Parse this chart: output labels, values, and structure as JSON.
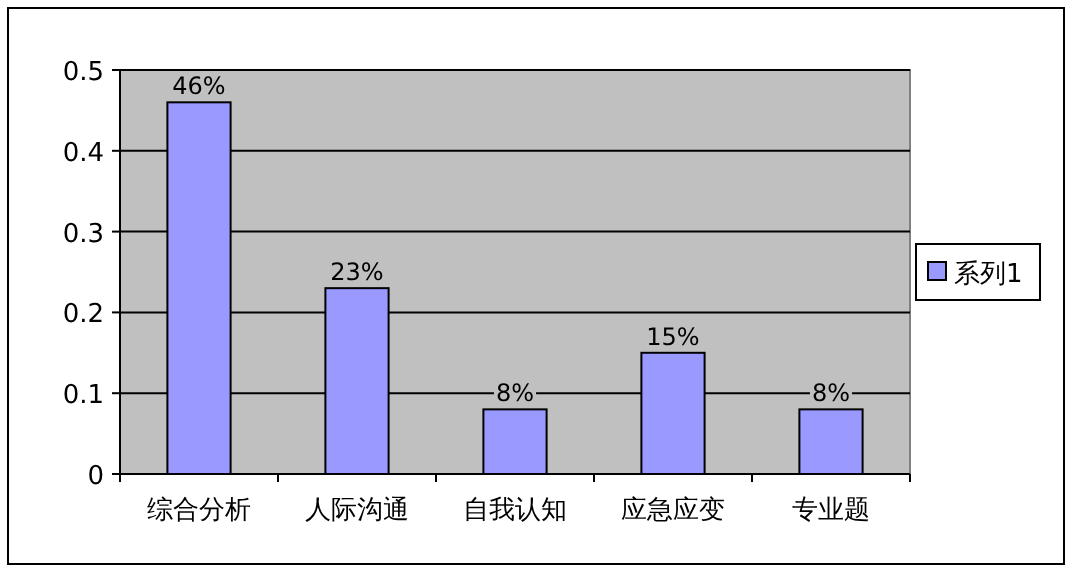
{
  "chart_data": {
    "type": "bar",
    "categories": [
      "综合分析",
      "人际沟通",
      "自我认知",
      "应急应变",
      "专业题"
    ],
    "series": [
      {
        "name": "系列1",
        "color": "#9999ff",
        "values": [
          0.46,
          0.23,
          0.08,
          0.15,
          0.08
        ],
        "value_labels": [
          "46%",
          "23%",
          "8%",
          "15%",
          "8%"
        ]
      }
    ],
    "ylim": [
      0,
      0.5
    ],
    "yticks": [
      0,
      0.1,
      0.2,
      0.3,
      0.4,
      0.5
    ],
    "grid": "y",
    "legend": "right"
  }
}
